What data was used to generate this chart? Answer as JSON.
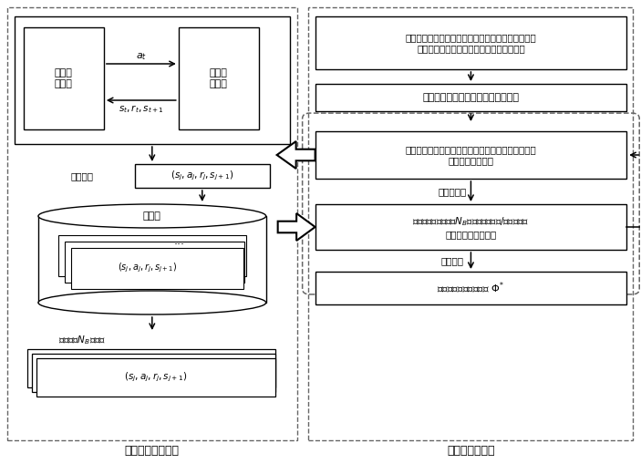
{
  "bg_color": "#ffffff",
  "fig_w": 7.03,
  "fig_h": 5.2,
  "dpi": 100,
  "left_panel_label": "经验池存储与采样",
  "right_panel_label": "智能体在线训练",
  "left_box1_text": "智能反\n射表面",
  "left_box2_text": "无线通\n信系统",
  "arrow_top_label": "$a_t$",
  "arrow_bottom_label": "$s_t, r_t, s_{t+1}$",
  "store_label": "存储经验",
  "store_tuple": "$(s_j, a_j, r_j, s_{j+1})$",
  "pool_label": "经验池",
  "pool_tuple": "$(s_j, a_j, r_j, s_{j+1})$",
  "sample_label": "随机采样$N_B$个样本",
  "sample_tuple": "$(s_j, a_j, r_j, s_{j+1})$",
  "right_box1_text": "构建智能体的动作网络、评价网络、经验池；随机初\n始化动作网络、评价网络参数，清空经验池",
  "right_box2_text": "根据用户信道状态信息设置初始状态",
  "right_box3_text": "智能反射表面与无线通信系统进行交互产生经验样本\n并存储至经验池中",
  "right_box4_text": "从经验池中随机采样$N_B$个样本用于动作/评价网络参\n数的训练，更新状态",
  "right_box5_text": "输出最优相位偏置矩阵 $\\Phi^{*}$",
  "label_not_converged": "网络未收敛",
  "label_converged": "网络收敛"
}
